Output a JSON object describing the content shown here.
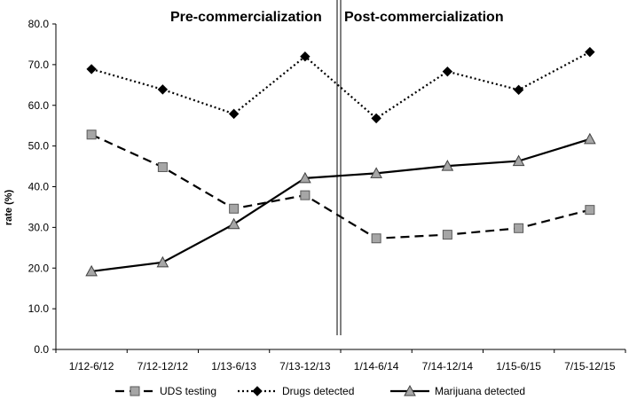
{
  "chart_data": {
    "type": "line",
    "title": "",
    "xlabel": "",
    "ylabel": "rate (%)",
    "ylim": [
      0,
      80
    ],
    "yticks": [
      "0.0",
      "10.0",
      "20.0",
      "30.0",
      "40.0",
      "50.0",
      "60.0",
      "70.0",
      "80.0"
    ],
    "categories": [
      "1/12-6/12",
      "7/12-12/12",
      "1/13-6/13",
      "7/13-12/13",
      "1/14-6/14",
      "7/14-12/14",
      "1/15-6/15",
      "7/15-12/15"
    ],
    "grid": false,
    "legend_position": "bottom",
    "period_labels": {
      "pre": "Pre-commercialization",
      "post": "Post-commercialization"
    },
    "series": [
      {
        "name": "UDS testing",
        "values": [
          52.8,
          44.8,
          34.6,
          37.9,
          27.3,
          28.2,
          29.8,
          34.3
        ],
        "line_style": "dashed",
        "marker": "square",
        "marker_color": "#a6a6a6"
      },
      {
        "name": "Drugs detected",
        "values": [
          68.9,
          63.9,
          57.9,
          72.0,
          56.8,
          68.3,
          63.8,
          73.1
        ],
        "line_style": "dotted",
        "marker": "diamond",
        "marker_color": "#000000"
      },
      {
        "name": "Marijuana detected",
        "values": [
          19.2,
          21.4,
          30.8,
          42.1,
          43.3,
          45.1,
          46.3,
          51.7
        ],
        "line_style": "solid",
        "marker": "triangle",
        "marker_color": "#a6a6a6"
      }
    ]
  }
}
